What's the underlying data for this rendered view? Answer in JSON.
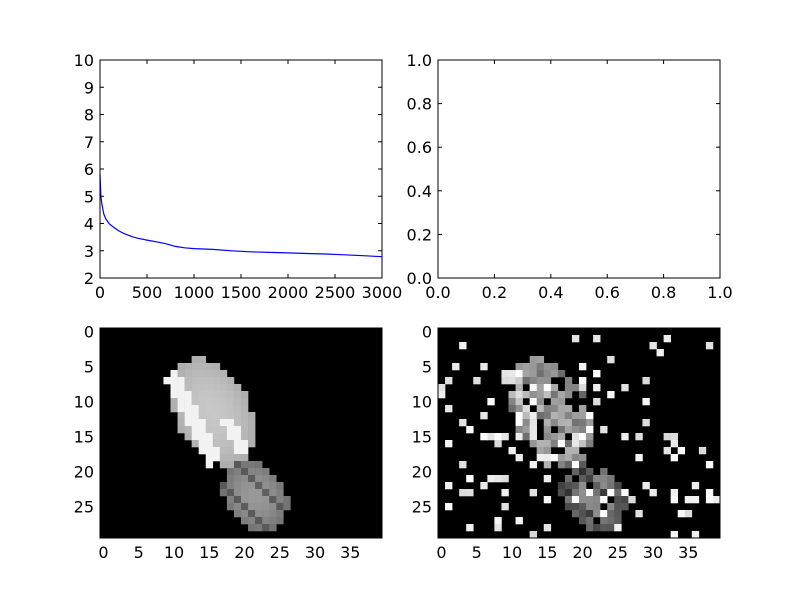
{
  "figure": {
    "background": "#ffffff",
    "line_color": "#0000ff"
  },
  "chart_data": [
    {
      "panel": "top-left",
      "type": "line",
      "title": "",
      "xlabel": "",
      "ylabel": "",
      "xlim": [
        0,
        3000
      ],
      "ylim": [
        2,
        10
      ],
      "xticks": [
        "0",
        "500",
        "1000",
        "1500",
        "2000",
        "2500",
        "3000"
      ],
      "yticks": [
        "2",
        "3",
        "4",
        "5",
        "6",
        "7",
        "8",
        "9",
        "10"
      ],
      "grid": false,
      "series": [
        {
          "color": "#0000ff",
          "x": [
            0,
            10,
            20,
            40,
            60,
            100,
            150,
            200,
            250,
            300,
            350,
            400,
            500,
            600,
            700,
            800,
            900,
            1000,
            1200,
            1400,
            1600,
            1800,
            2000,
            2200,
            2400,
            2600,
            2800,
            2900,
            3000
          ],
          "y": [
            5.8,
            5.0,
            4.7,
            4.35,
            4.18,
            3.98,
            3.85,
            3.73,
            3.64,
            3.57,
            3.51,
            3.46,
            3.39,
            3.33,
            3.26,
            3.16,
            3.11,
            3.08,
            3.05,
            3.0,
            2.96,
            2.94,
            2.92,
            2.9,
            2.88,
            2.85,
            2.82,
            2.8,
            2.78
          ]
        }
      ]
    },
    {
      "panel": "top-right",
      "type": "line",
      "title": "",
      "xlabel": "",
      "ylabel": "",
      "xlim": [
        0,
        1
      ],
      "ylim": [
        0,
        1
      ],
      "xticks": [
        "0.0",
        "0.2",
        "0.4",
        "0.6",
        "0.8",
        "1.0"
      ],
      "yticks": [
        "0.0",
        "0.2",
        "0.4",
        "0.6",
        "0.8",
        "1.0"
      ],
      "grid": false,
      "series": []
    },
    {
      "panel": "bottom-left",
      "type": "heatmap",
      "title": "",
      "colormap": "gray",
      "shape": [
        30,
        40
      ],
      "xticks": [
        "0",
        "5",
        "10",
        "15",
        "20",
        "25",
        "30",
        "35"
      ],
      "yticks": [
        "0",
        "5",
        "10",
        "15",
        "20",
        "25"
      ],
      "content": "grayscale image of a small object (bright ellipse with a lower protrusion) on a black background"
    },
    {
      "panel": "bottom-right",
      "type": "heatmap",
      "title": "",
      "colormap": "gray",
      "shape": [
        30,
        40
      ],
      "xticks": [
        "0",
        "5",
        "10",
        "15",
        "20",
        "25",
        "30",
        "35"
      ],
      "yticks": [
        "0",
        "5",
        "10",
        "15",
        "20",
        "25"
      ],
      "content": "same object as bottom-left with heavy salt-and-pepper noise on black background"
    }
  ]
}
